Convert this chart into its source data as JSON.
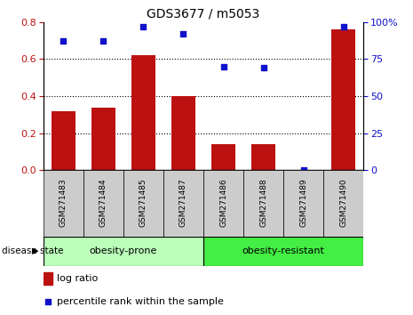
{
  "title": "GDS3677 / m5053",
  "samples": [
    "GSM271483",
    "GSM271484",
    "GSM271485",
    "GSM271487",
    "GSM271486",
    "GSM271488",
    "GSM271489",
    "GSM271490"
  ],
  "log_ratio": [
    0.32,
    0.335,
    0.62,
    0.4,
    0.14,
    0.14,
    0.0,
    0.76
  ],
  "percentile_rank": [
    87,
    87,
    97,
    92,
    70,
    69,
    0,
    97
  ],
  "bar_color": "#bb1111",
  "dot_color": "#1111cc",
  "left_ylim": [
    0,
    0.8
  ],
  "right_ylim": [
    0,
    100
  ],
  "left_yticks": [
    0,
    0.2,
    0.4,
    0.6,
    0.8
  ],
  "right_yticks": [
    0,
    25,
    50,
    75,
    100
  ],
  "right_yticklabels": [
    "0",
    "25",
    "50",
    "75",
    "100%"
  ],
  "groups": [
    {
      "label": "obesity-prone",
      "start": 0,
      "end": 4,
      "color": "#bbffbb"
    },
    {
      "label": "obesity-resistant",
      "start": 4,
      "end": 8,
      "color": "#44ee44"
    }
  ],
  "disease_state_label": "disease state",
  "legend_bar_label": "log ratio",
  "legend_dot_label": "percentile rank within the sample",
  "tick_area_color": "#cccccc",
  "bar_width": 0.6
}
